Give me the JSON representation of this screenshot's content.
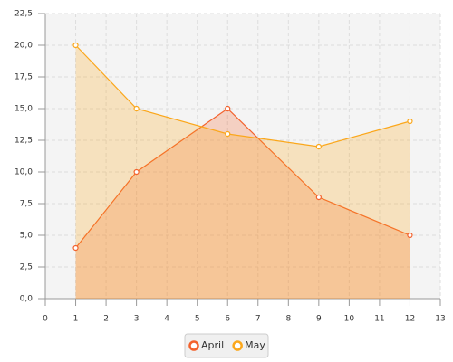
{
  "chart_data": {
    "type": "area",
    "x": [
      1,
      3,
      6,
      9,
      12
    ],
    "series": [
      {
        "name": "April",
        "color": "#f3622d",
        "values": [
          4,
          10,
          15,
          8,
          5
        ]
      },
      {
        "name": "May",
        "color": "#fba71b",
        "values": [
          20,
          15,
          13,
          12,
          14
        ]
      }
    ],
    "xlim": [
      0,
      13
    ],
    "xticks": [
      0,
      1,
      2,
      3,
      4,
      5,
      6,
      7,
      8,
      9,
      10,
      11,
      12,
      13
    ],
    "ylim": [
      0,
      22.5
    ],
    "yticks": [
      {
        "value": 0,
        "label": "0,0"
      },
      {
        "value": 2.5,
        "label": "2,5"
      },
      {
        "value": 5,
        "label": "5,0"
      },
      {
        "value": 7.5,
        "label": "7,5"
      },
      {
        "value": 10,
        "label": "10,0"
      },
      {
        "value": 12.5,
        "label": "12,5"
      },
      {
        "value": 15,
        "label": "15,0"
      },
      {
        "value": 17.5,
        "label": "17,5"
      },
      {
        "value": 20,
        "label": "20,0"
      },
      {
        "value": 22.5,
        "label": "22,5"
      }
    ],
    "grid": true,
    "legend": "bottom"
  }
}
